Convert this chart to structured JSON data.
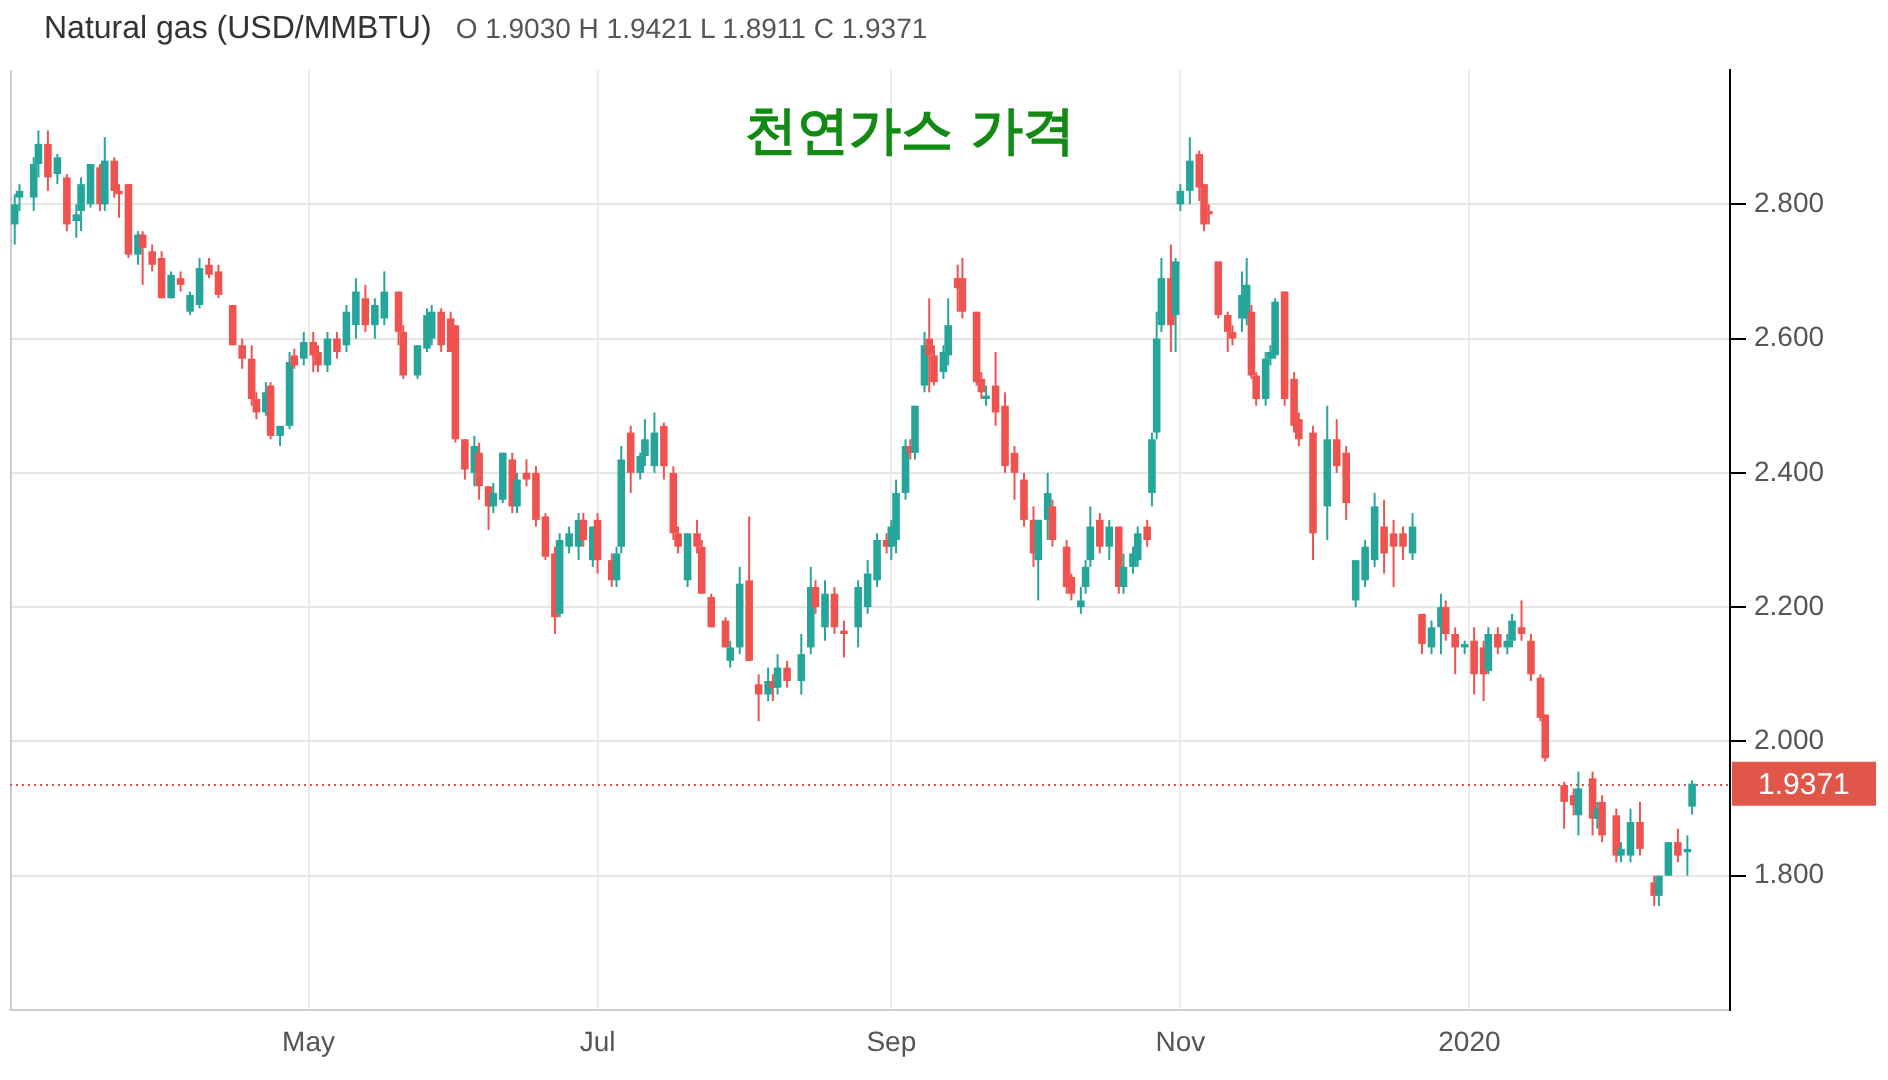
{
  "chart_data": {
    "type": "candlestick",
    "title": "천연가스 가격",
    "subtitle": "Natural gas (USD/MMBTU)",
    "annotations": [
      "O 1.9030 H 1.9421 L 1.8911 C 1.9371"
    ],
    "x": [
      "2019-02-28",
      "2019-03-01",
      "2019-03-04",
      "2019-03-05",
      "2019-03-07",
      "2019-03-09",
      "2019-03-11",
      "2019-03-13",
      "2019-03-14",
      "2019-03-16",
      "2019-03-18",
      "2019-03-19",
      "2019-03-21",
      "2019-03-22",
      "2019-03-24",
      "2019-03-26",
      "2019-03-27",
      "2019-03-29",
      "2019-03-31",
      "2019-04-02",
      "2019-04-04",
      "2019-04-06",
      "2019-04-08",
      "2019-04-10",
      "2019-04-12",
      "2019-04-15",
      "2019-04-17",
      "2019-04-19",
      "2019-04-20",
      "2019-04-22",
      "2019-04-23",
      "2019-04-25",
      "2019-04-27",
      "2019-04-28",
      "2019-04-30",
      "2019-05-02",
      "2019-05-03",
      "2019-05-05",
      "2019-05-07",
      "2019-05-09",
      "2019-05-11",
      "2019-05-13",
      "2019-05-15",
      "2019-05-17",
      "2019-05-20",
      "2019-05-21",
      "2019-05-24",
      "2019-05-26",
      "2019-05-27",
      "2019-05-29",
      "2019-05-31",
      "2019-06-01",
      "2019-06-03",
      "2019-06-05",
      "2019-06-06",
      "2019-06-08",
      "2019-06-09",
      "2019-06-11",
      "2019-06-13",
      "2019-06-14",
      "2019-06-16",
      "2019-06-18",
      "2019-06-20",
      "2019-06-22",
      "2019-06-23",
      "2019-06-25",
      "2019-06-27",
      "2019-06-28",
      "2019-06-30",
      "2019-07-01",
      "2019-07-04",
      "2019-07-05",
      "2019-07-06",
      "2019-07-08",
      "2019-07-10",
      "2019-07-11",
      "2019-07-13",
      "2019-07-15",
      "2019-07-17",
      "2019-07-18",
      "2019-07-20",
      "2019-07-22",
      "2019-07-23",
      "2019-07-25",
      "2019-07-28",
      "2019-07-29",
      "2019-07-31",
      "2019-08-02",
      "2019-08-04",
      "2019-08-06",
      "2019-08-07",
      "2019-08-08",
      "2019-08-10",
      "2019-08-13",
      "2019-08-15",
      "2019-08-16",
      "2019-08-18",
      "2019-08-20",
      "2019-08-22",
      "2019-08-25",
      "2019-08-27",
      "2019-08-29",
      "2019-08-31",
      "2019-09-01",
      "2019-09-02",
      "2019-09-04",
      "2019-09-05",
      "2019-09-06",
      "2019-09-08",
      "2019-09-09",
      "2019-09-10",
      "2019-09-12",
      "2019-09-13",
      "2019-09-15",
      "2019-09-16",
      "2019-09-19",
      "2019-09-20",
      "2019-09-21",
      "2019-09-23",
      "2019-09-25",
      "2019-09-27",
      "2019-09-29",
      "2019-10-01",
      "2019-10-02",
      "2019-10-04",
      "2019-10-05",
      "2019-10-08",
      "2019-10-09",
      "2019-10-11",
      "2019-10-12",
      "2019-10-13",
      "2019-10-15",
      "2019-10-17",
      "2019-10-19",
      "2019-10-20",
      "2019-10-22",
      "2019-10-23",
      "2019-10-25",
      "2019-10-26",
      "2019-10-27",
      "2019-10-28",
      "2019-10-30",
      "2019-10-31",
      "2019-11-01",
      "2019-11-03",
      "2019-11-05",
      "2019-11-06",
      "2019-11-07",
      "2019-11-09",
      "2019-11-11",
      "2019-11-12",
      "2019-11-14",
      "2019-11-15",
      "2019-11-16",
      "2019-11-17",
      "2019-11-19",
      "2019-11-20",
      "2019-11-21",
      "2019-11-23",
      "2019-11-25",
      "2019-11-26",
      "2019-11-29",
      "2019-12-02",
      "2019-12-04",
      "2019-12-06",
      "2019-12-08",
      "2019-12-10",
      "2019-12-12",
      "2019-12-14",
      "2019-12-16",
      "2019-12-18",
      "2019-12-20",
      "2019-12-22",
      "2019-12-24",
      "2019-12-26",
      "2019-12-27",
      "2019-12-29",
      "2019-12-31",
      "2020-01-02",
      "2020-01-04",
      "2020-01-05",
      "2020-01-07",
      "2020-01-09",
      "2020-01-10",
      "2020-01-12",
      "2020-01-14",
      "2020-01-16",
      "2020-01-17",
      "2020-01-21",
      "2020-01-23",
      "2020-01-24",
      "2020-01-27",
      "2020-01-28",
      "2020-01-29",
      "2020-02-01",
      "2020-02-02",
      "2020-02-04",
      "2020-02-06",
      "2020-02-09",
      "2020-02-10",
      "2020-02-12",
      "2020-02-14",
      "2020-02-16",
      "2020-02-17"
    ],
    "ohlc": [
      [
        2.77,
        2.815,
        2.74,
        2.8
      ],
      [
        2.81,
        2.83,
        2.79,
        2.82
      ],
      [
        2.81,
        2.87,
        2.79,
        2.86
      ],
      [
        2.86,
        2.91,
        2.84,
        2.89
      ],
      [
        2.89,
        2.91,
        2.82,
        2.84
      ],
      [
        2.845,
        2.875,
        2.83,
        2.87
      ],
      [
        2.84,
        2.845,
        2.76,
        2.77
      ],
      [
        2.775,
        2.8,
        2.75,
        2.785
      ],
      [
        2.79,
        2.84,
        2.76,
        2.83
      ],
      [
        2.8,
        2.86,
        2.795,
        2.86
      ],
      [
        2.855,
        2.86,
        2.79,
        2.8
      ],
      [
        2.8,
        2.9,
        2.79,
        2.865
      ],
      [
        2.865,
        2.87,
        2.81,
        2.82
      ],
      [
        2.82,
        2.83,
        2.78,
        2.815
      ],
      [
        2.83,
        2.83,
        2.72,
        2.725
      ],
      [
        2.725,
        2.76,
        2.71,
        2.755
      ],
      [
        2.755,
        2.76,
        2.68,
        2.735
      ],
      [
        2.73,
        2.74,
        2.7,
        2.71
      ],
      [
        2.72,
        2.73,
        2.66,
        2.66
      ],
      [
        2.66,
        2.7,
        2.66,
        2.695
      ],
      [
        2.69,
        2.7,
        2.67,
        2.68
      ],
      [
        2.64,
        2.67,
        2.635,
        2.665
      ],
      [
        2.65,
        2.72,
        2.645,
        2.705
      ],
      [
        2.71,
        2.72,
        2.69,
        2.695
      ],
      [
        2.7,
        2.71,
        2.66,
        2.665
      ],
      [
        2.65,
        2.65,
        2.59,
        2.59
      ],
      [
        2.59,
        2.6,
        2.555,
        2.57
      ],
      [
        2.57,
        2.59,
        2.5,
        2.51
      ],
      [
        2.51,
        2.52,
        2.48,
        2.49
      ],
      [
        2.49,
        2.535,
        2.485,
        2.52
      ],
      [
        2.53,
        2.535,
        2.45,
        2.455
      ],
      [
        2.455,
        2.47,
        2.44,
        2.47
      ],
      [
        2.47,
        2.58,
        2.465,
        2.565
      ],
      [
        2.575,
        2.585,
        2.555,
        2.56
      ],
      [
        2.57,
        2.61,
        2.56,
        2.595
      ],
      [
        2.595,
        2.61,
        2.55,
        2.575
      ],
      [
        2.58,
        2.59,
        2.55,
        2.56
      ],
      [
        2.56,
        2.61,
        2.55,
        2.6
      ],
      [
        2.6,
        2.61,
        2.57,
        2.58
      ],
      [
        2.59,
        2.65,
        2.58,
        2.64
      ],
      [
        2.62,
        2.69,
        2.6,
        2.67
      ],
      [
        2.66,
        2.68,
        2.61,
        2.62
      ],
      [
        2.62,
        2.66,
        2.6,
        2.65
      ],
      [
        2.63,
        2.7,
        2.62,
        2.67
      ],
      [
        2.67,
        2.67,
        2.59,
        2.61
      ],
      [
        2.61,
        2.62,
        2.54,
        2.545
      ],
      [
        2.545,
        2.59,
        2.54,
        2.59
      ],
      [
        2.585,
        2.645,
        2.58,
        2.635
      ],
      [
        2.6,
        2.65,
        2.59,
        2.64
      ],
      [
        2.64,
        2.645,
        2.58,
        2.59
      ],
      [
        2.63,
        2.64,
        2.58,
        2.58
      ],
      [
        2.62,
        2.62,
        2.445,
        2.45
      ],
      [
        2.45,
        2.45,
        2.39,
        2.405
      ],
      [
        2.4,
        2.455,
        2.38,
        2.44
      ],
      [
        2.43,
        2.445,
        2.36,
        2.38
      ],
      [
        2.38,
        2.38,
        2.315,
        2.35
      ],
      [
        2.35,
        2.385,
        2.34,
        2.37
      ],
      [
        2.36,
        2.43,
        2.355,
        2.43
      ],
      [
        2.42,
        2.43,
        2.34,
        2.35
      ],
      [
        2.35,
        2.4,
        2.34,
        2.39
      ],
      [
        2.4,
        2.42,
        2.38,
        2.39
      ],
      [
        2.4,
        2.41,
        2.32,
        2.33
      ],
      [
        2.335,
        2.34,
        2.27,
        2.275
      ],
      [
        2.28,
        2.29,
        2.16,
        2.185
      ],
      [
        2.19,
        2.31,
        2.185,
        2.3
      ],
      [
        2.29,
        2.32,
        2.28,
        2.31
      ],
      [
        2.29,
        2.34,
        2.27,
        2.33
      ],
      [
        2.33,
        2.34,
        2.29,
        2.3
      ],
      [
        2.27,
        2.32,
        2.26,
        2.32
      ],
      [
        2.33,
        2.34,
        2.25,
        2.27
      ],
      [
        2.27,
        2.28,
        2.23,
        2.24
      ],
      [
        2.24,
        2.29,
        2.23,
        2.28
      ],
      [
        2.29,
        2.44,
        2.28,
        2.42
      ],
      [
        2.46,
        2.47,
        2.37,
        2.4
      ],
      [
        2.4,
        2.43,
        2.39,
        2.425
      ],
      [
        2.425,
        2.48,
        2.41,
        2.45
      ],
      [
        2.41,
        2.49,
        2.4,
        2.46
      ],
      [
        2.47,
        2.475,
        2.39,
        2.41
      ],
      [
        2.4,
        2.41,
        2.3,
        2.31
      ],
      [
        2.31,
        2.32,
        2.28,
        2.29
      ],
      [
        2.24,
        2.31,
        2.23,
        2.31
      ],
      [
        2.31,
        2.33,
        2.28,
        2.29
      ],
      [
        2.29,
        2.3,
        2.22,
        2.22
      ],
      [
        2.215,
        2.22,
        2.17,
        2.17
      ],
      [
        2.18,
        2.185,
        2.14,
        2.14
      ],
      [
        2.12,
        2.15,
        2.11,
        2.14
      ],
      [
        2.14,
        2.26,
        2.13,
        2.235
      ],
      [
        2.24,
        2.335,
        2.12,
        2.12
      ],
      [
        2.085,
        2.1,
        2.03,
        2.07
      ],
      [
        2.07,
        2.11,
        2.06,
        2.09
      ],
      [
        2.09,
        2.1,
        2.06,
        2.08
      ],
      [
        2.08,
        2.13,
        2.07,
        2.11
      ],
      [
        2.11,
        2.12,
        2.08,
        2.09
      ],
      [
        2.09,
        2.16,
        2.07,
        2.13
      ],
      [
        2.14,
        2.26,
        2.13,
        2.23
      ],
      [
        2.23,
        2.24,
        2.19,
        2.2
      ],
      [
        2.17,
        2.24,
        2.15,
        2.22
      ],
      [
        2.22,
        2.23,
        2.16,
        2.17
      ],
      [
        2.165,
        2.18,
        2.125,
        2.16
      ],
      [
        2.17,
        2.24,
        2.14,
        2.23
      ],
      [
        2.2,
        2.27,
        2.19,
        2.25
      ],
      [
        2.24,
        2.31,
        2.23,
        2.3
      ],
      [
        2.3,
        2.31,
        2.28,
        2.29
      ],
      [
        2.29,
        2.33,
        2.27,
        2.32
      ],
      [
        2.3,
        2.39,
        2.28,
        2.37
      ],
      [
        2.37,
        2.45,
        2.36,
        2.44
      ],
      [
        2.44,
        2.45,
        2.42,
        2.43
      ],
      [
        2.43,
        2.5,
        2.42,
        2.5
      ],
      [
        2.53,
        2.61,
        2.52,
        2.59
      ],
      [
        2.6,
        2.66,
        2.52,
        2.575
      ],
      [
        2.575,
        2.59,
        2.53,
        2.535
      ],
      [
        2.55,
        2.59,
        2.54,
        2.58
      ],
      [
        2.575,
        2.66,
        2.56,
        2.62
      ],
      [
        2.69,
        2.71,
        2.64,
        2.675
      ],
      [
        2.69,
        2.72,
        2.63,
        2.64
      ],
      [
        2.64,
        2.64,
        2.53,
        2.535
      ],
      [
        2.54,
        2.55,
        2.51,
        2.52
      ],
      [
        2.51,
        2.53,
        2.5,
        2.515
      ],
      [
        2.53,
        2.58,
        2.47,
        2.49
      ],
      [
        2.5,
        2.52,
        2.4,
        2.41
      ],
      [
        2.43,
        2.44,
        2.36,
        2.4
      ],
      [
        2.39,
        2.4,
        2.32,
        2.33
      ],
      [
        2.33,
        2.35,
        2.26,
        2.28
      ],
      [
        2.27,
        2.33,
        2.21,
        2.33
      ],
      [
        2.33,
        2.4,
        2.3,
        2.37
      ],
      [
        2.35,
        2.36,
        2.29,
        2.3
      ],
      [
        2.29,
        2.3,
        2.22,
        2.23
      ],
      [
        2.245,
        2.25,
        2.21,
        2.22
      ],
      [
        2.2,
        2.23,
        2.19,
        2.21
      ],
      [
        2.23,
        2.27,
        2.22,
        2.26
      ],
      [
        2.27,
        2.35,
        2.26,
        2.32
      ],
      [
        2.33,
        2.34,
        2.28,
        2.29
      ],
      [
        2.29,
        2.33,
        2.27,
        2.32
      ],
      [
        2.32,
        2.32,
        2.22,
        2.23
      ],
      [
        2.23,
        2.28,
        2.22,
        2.26
      ],
      [
        2.26,
        2.29,
        2.25,
        2.28
      ],
      [
        2.27,
        2.32,
        2.26,
        2.31
      ],
      [
        2.32,
        2.33,
        2.29,
        2.3
      ],
      [
        2.37,
        2.46,
        2.35,
        2.45
      ],
      [
        2.46,
        2.64,
        2.45,
        2.6
      ],
      [
        2.62,
        2.72,
        2.61,
        2.69
      ],
      [
        2.69,
        2.74,
        2.58,
        2.62
      ],
      [
        2.635,
        2.72,
        2.58,
        2.715
      ],
      [
        2.8,
        2.83,
        2.79,
        2.82
      ],
      [
        2.82,
        2.9,
        2.8,
        2.865
      ],
      [
        2.875,
        2.88,
        2.805,
        2.825
      ],
      [
        2.83,
        2.83,
        2.76,
        2.77
      ],
      [
        2.79,
        2.8,
        2.77,
        2.785
      ],
      [
        2.715,
        2.715,
        2.63,
        2.635
      ],
      [
        2.635,
        2.64,
        2.58,
        2.61
      ],
      [
        2.61,
        2.62,
        2.59,
        2.6
      ],
      [
        2.63,
        2.7,
        2.61,
        2.665
      ],
      [
        2.63,
        2.72,
        2.62,
        2.68
      ],
      [
        2.64,
        2.65,
        2.54,
        2.545
      ],
      [
        2.545,
        2.55,
        2.5,
        2.51
      ],
      [
        2.51,
        2.58,
        2.5,
        2.57
      ],
      [
        2.57,
        2.59,
        2.56,
        2.58
      ],
      [
        2.575,
        2.66,
        2.57,
        2.655
      ],
      [
        2.67,
        2.67,
        2.5,
        2.51
      ],
      [
        2.54,
        2.55,
        2.46,
        2.47
      ],
      [
        2.48,
        2.49,
        2.44,
        2.45
      ],
      [
        2.46,
        2.47,
        2.27,
        2.31
      ],
      [
        2.35,
        2.5,
        2.3,
        2.45
      ],
      [
        2.45,
        2.48,
        2.4,
        2.41
      ],
      [
        2.43,
        2.44,
        2.33,
        2.355
      ],
      [
        2.21,
        2.27,
        2.2,
        2.27
      ],
      [
        2.24,
        2.3,
        2.23,
        2.29
      ],
      [
        2.27,
        2.37,
        2.26,
        2.35
      ],
      [
        2.32,
        2.36,
        2.25,
        2.28
      ],
      [
        2.31,
        2.33,
        2.23,
        2.29
      ],
      [
        2.31,
        2.32,
        2.27,
        2.29
      ],
      [
        2.28,
        2.34,
        2.27,
        2.32
      ],
      [
        2.19,
        2.19,
        2.13,
        2.145
      ],
      [
        2.14,
        2.18,
        2.13,
        2.17
      ],
      [
        2.17,
        2.22,
        2.13,
        2.2
      ],
      [
        2.2,
        2.21,
        2.15,
        2.16
      ],
      [
        2.16,
        2.17,
        2.1,
        2.14
      ],
      [
        2.14,
        2.15,
        2.13,
        2.145
      ],
      [
        2.15,
        2.17,
        2.07,
        2.1
      ],
      [
        2.14,
        2.15,
        2.06,
        2.1
      ],
      [
        2.105,
        2.17,
        2.1,
        2.16
      ],
      [
        2.16,
        2.17,
        2.13,
        2.14
      ],
      [
        2.14,
        2.16,
        2.13,
        2.15
      ],
      [
        2.15,
        2.19,
        2.14,
        2.18
      ],
      [
        2.17,
        2.21,
        2.15,
        2.16
      ],
      [
        2.15,
        2.16,
        2.09,
        2.1
      ],
      [
        2.095,
        2.1,
        2.03,
        2.035
      ],
      [
        2.04,
        2.04,
        1.97,
        1.975
      ],
      [
        1.935,
        1.94,
        1.87,
        1.91
      ],
      [
        1.92,
        1.93,
        1.89,
        1.905
      ],
      [
        1.89,
        1.955,
        1.86,
        1.93
      ],
      [
        1.945,
        1.955,
        1.86,
        1.885
      ],
      [
        1.885,
        1.91,
        1.87,
        1.9
      ],
      [
        1.91,
        1.92,
        1.85,
        1.86
      ],
      [
        1.89,
        1.9,
        1.82,
        1.83
      ],
      [
        1.83,
        1.85,
        1.82,
        1.84
      ],
      [
        1.83,
        1.9,
        1.82,
        1.88
      ],
      [
        1.88,
        1.91,
        1.83,
        1.84
      ],
      [
        1.79,
        1.8,
        1.755,
        1.77
      ],
      [
        1.77,
        1.8,
        1.755,
        1.8
      ],
      [
        1.8,
        1.85,
        1.8,
        1.85
      ],
      [
        1.85,
        1.87,
        1.82,
        1.83
      ],
      [
        1.835,
        1.86,
        1.8,
        1.84
      ],
      [
        1.903,
        1.9421,
        1.8911,
        1.9371
      ]
    ],
    "colors": [
      "#26a69a",
      "#26a69a",
      "#26a69a",
      "#26a69a",
      "#ef5350",
      "#26a69a",
      "#ef5350",
      "#26a69a",
      "#26a69a",
      "#26a69a",
      "#ef5350",
      "#26a69a",
      "#ef5350",
      "#ef5350",
      "#ef5350",
      "#26a69a",
      "#ef5350",
      "#ef5350",
      "#ef5350",
      "#26a69a",
      "#ef5350",
      "#26a69a",
      "#26a69a",
      "#ef5350",
      "#ef5350",
      "#ef5350",
      "#ef5350",
      "#ef5350",
      "#ef5350",
      "#26a69a",
      "#ef5350",
      "#26a69a",
      "#26a69a",
      "#ef5350",
      "#26a69a",
      "#ef5350",
      "#ef5350",
      "#26a69a",
      "#ef5350",
      "#26a69a",
      "#26a69a",
      "#ef5350",
      "#26a69a",
      "#26a69a",
      "#ef5350",
      "#ef5350",
      "#26a69a",
      "#26a69a",
      "#26a69a",
      "#ef5350",
      "#ef5350",
      "#ef5350",
      "#ef5350",
      "#26a69a",
      "#ef5350",
      "#ef5350",
      "#26a69a",
      "#26a69a",
      "#ef5350",
      "#26a69a",
      "#ef5350",
      "#ef5350",
      "#ef5350",
      "#ef5350",
      "#26a69a",
      "#26a69a",
      "#26a69a",
      "#ef5350",
      "#26a69a",
      "#ef5350",
      "#ef5350",
      "#26a69a",
      "#26a69a",
      "#ef5350",
      "#26a69a",
      "#26a69a",
      "#26a69a",
      "#ef5350",
      "#ef5350",
      "#ef5350",
      "#26a69a",
      "#ef5350",
      "#ef5350",
      "#ef5350",
      "#ef5350",
      "#26a69a",
      "#26a69a",
      "#ef5350",
      "#ef5350",
      "#26a69a",
      "#ef5350",
      "#26a69a",
      "#ef5350",
      "#26a69a",
      "#26a69a",
      "#ef5350",
      "#26a69a",
      "#ef5350",
      "#ef5350",
      "#26a69a",
      "#26a69a",
      "#26a69a",
      "#ef5350",
      "#26a69a",
      "#26a69a",
      "#26a69a",
      "#ef5350",
      "#26a69a",
      "#26a69a",
      "#ef5350",
      "#ef5350",
      "#26a69a",
      "#26a69a",
      "#ef5350",
      "#ef5350",
      "#ef5350",
      "#ef5350",
      "#26a69a",
      "#ef5350",
      "#ef5350",
      "#ef5350",
      "#ef5350",
      "#ef5350",
      "#26a69a",
      "#26a69a",
      "#ef5350",
      "#ef5350",
      "#ef5350",
      "#26a69a",
      "#26a69a",
      "#26a69a",
      "#ef5350",
      "#26a69a",
      "#ef5350",
      "#26a69a",
      "#26a69a",
      "#26a69a",
      "#ef5350",
      "#26a69a",
      "#26a69a",
      "#26a69a",
      "#ef5350",
      "#26a69a",
      "#26a69a",
      "#26a69a",
      "#ef5350",
      "#ef5350",
      "#ef5350",
      "#ef5350",
      "#ef5350",
      "#ef5350",
      "#26a69a",
      "#26a69a",
      "#ef5350",
      "#ef5350",
      "#26a69a",
      "#26a69a",
      "#26a69a",
      "#ef5350",
      "#ef5350",
      "#ef5350",
      "#ef5350",
      "#26a69a",
      "#ef5350",
      "#ef5350",
      "#26a69a",
      "#26a69a",
      "#26a69a",
      "#ef5350",
      "#ef5350",
      "#ef5350",
      "#26a69a",
      "#ef5350",
      "#26a69a",
      "#26a69a",
      "#ef5350",
      "#ef5350",
      "#26a69a",
      "#ef5350",
      "#ef5350",
      "#26a69a",
      "#ef5350",
      "#26a69a",
      "#26a69a",
      "#ef5350",
      "#ef5350",
      "#ef5350",
      "#ef5350",
      "#ef5350",
      "#ef5350",
      "#26a69a",
      "#ef5350",
      "#26a69a",
      "#ef5350",
      "#ef5350",
      "#26a69a",
      "#26a69a",
      "#ef5350",
      "#ef5350",
      "#26a69a",
      "#26a69a",
      "#ef5350",
      "#26a69a",
      "#26a69a"
    ],
    "xlim": [
      "2019-02-27",
      "2020-02-25"
    ],
    "xticks": [
      {
        "value": "2019-05-01",
        "label": "May"
      },
      {
        "value": "2019-07-01",
        "label": "Jul"
      },
      {
        "value": "2019-09-01",
        "label": "Sep"
      },
      {
        "value": "2019-11-01",
        "label": "Nov"
      },
      {
        "value": "2020-01-01",
        "label": "2020"
      }
    ],
    "ylim": [
      1.6,
      3.0
    ],
    "yticks": [
      {
        "value": 1.8,
        "label": "1.800"
      },
      {
        "value": 2.0,
        "label": "2.000"
      },
      {
        "value": 2.2,
        "label": "2.200"
      },
      {
        "value": 2.4,
        "label": "2.400"
      },
      {
        "value": 2.6,
        "label": "2.600"
      },
      {
        "value": 2.8,
        "label": "2.800"
      }
    ],
    "ref_lines": [
      {
        "axis": "y",
        "value": 1.9371,
        "label": "1.9371",
        "color": "#e0574a",
        "line_style": "dotted"
      }
    ],
    "grid": true
  }
}
